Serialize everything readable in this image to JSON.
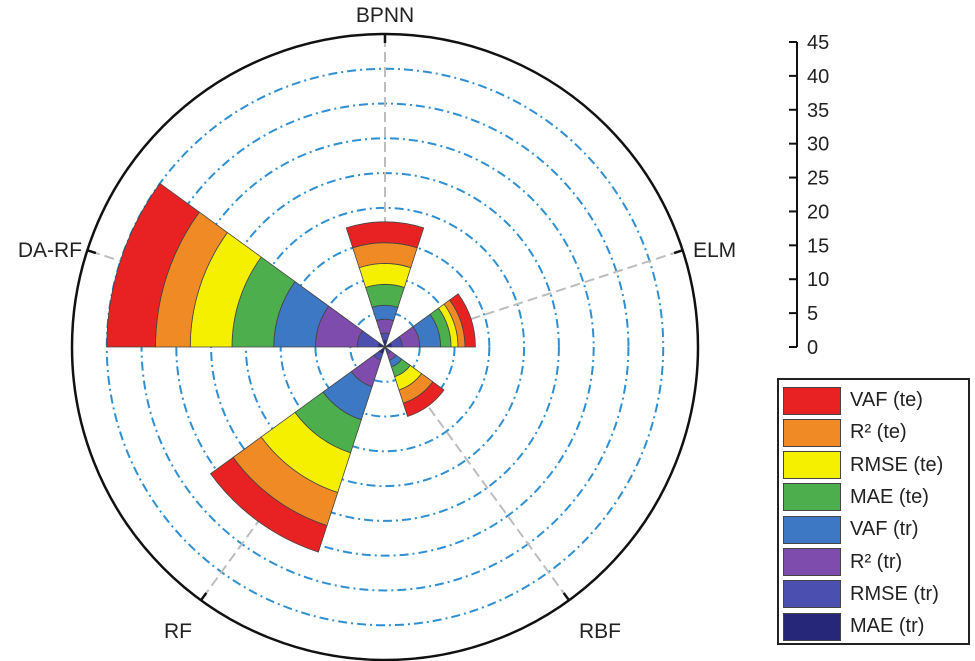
{
  "chart_data": {
    "type": "polar-stacked-bar",
    "categories": [
      "BPNN",
      "ELM",
      "RBF",
      "RF",
      "DA-RF"
    ],
    "rlim": [
      0,
      45
    ],
    "rticks": [
      0,
      5,
      10,
      15,
      20,
      25,
      30,
      35,
      40,
      45
    ],
    "series": [
      {
        "name": "MAE (tr)",
        "color": "#27277a",
        "values": [
          1,
          1,
          0.5,
          1,
          1
        ]
      },
      {
        "name": "RMSE (tr)",
        "color": "#4a4fb0",
        "values": [
          1,
          1.5,
          0.5,
          1,
          3
        ]
      },
      {
        "name": "R² (tr)",
        "color": "#7d4cad",
        "values": [
          2,
          2.5,
          1,
          4,
          6
        ]
      },
      {
        "name": "VAF (tr)",
        "color": "#3c78c4",
        "values": [
          2,
          3,
          1,
          5,
          6
        ]
      },
      {
        "name": "MAE (te)",
        "color": "#4cae4c",
        "values": [
          3,
          1.5,
          1.5,
          5,
          6
        ]
      },
      {
        "name": "RMSE (te)",
        "color": "#f5f000",
        "values": [
          3,
          1,
          2,
          6,
          6
        ]
      },
      {
        "name": "R² (te)",
        "color": "#f08a24",
        "values": [
          3,
          1,
          2,
          5,
          5
        ]
      },
      {
        "name": "VAF (te)",
        "color": "#e82222",
        "values": [
          3,
          1.5,
          2,
          4,
          7
        ]
      }
    ],
    "legend_order": [
      "VAF (te)",
      "R² (te)",
      "RMSE (te)",
      "MAE (te)",
      "VAF (tr)",
      "R² (tr)",
      "RMSE (tr)",
      "MAE (tr)"
    ],
    "grid_color": "#2f8fd0",
    "spoke_color": "#bdbdbd",
    "legend_position": "bottom-right",
    "axis_position": "top-right"
  }
}
